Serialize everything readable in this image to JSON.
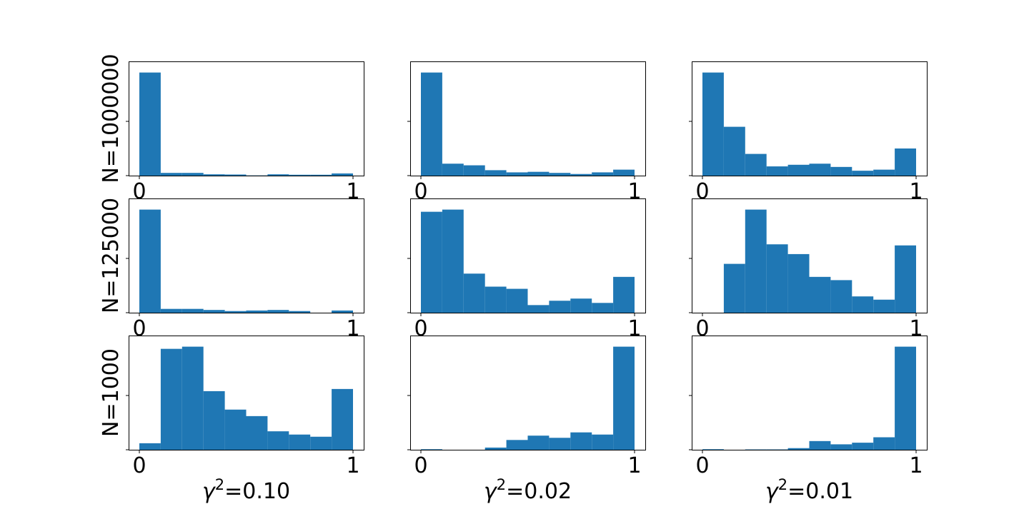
{
  "chart_data": {
    "type": "bar",
    "layout": "3x3 grid of histograms",
    "x_ticks": [
      "0",
      "1"
    ],
    "xlim": [
      0,
      1
    ],
    "column_labels": [
      "γ²=0.10",
      "γ²=0.02",
      "γ²=0.01"
    ],
    "row_labels": [
      "N=1000000",
      "N=125000",
      "N=1000"
    ],
    "bins": [
      0.0,
      0.1,
      0.2,
      0.3,
      0.4,
      0.5,
      0.6,
      0.7,
      0.8,
      0.9,
      1.0
    ],
    "bar_color": "#1f77b4",
    "panels": [
      {
        "row": 0,
        "col": 0,
        "ylim": [
          0,
          1.0
        ],
        "values": [
          0.95,
          0.025,
          0.025,
          0.012,
          0.01,
          0.002,
          0.012,
          0.008,
          0.008,
          0.02
        ]
      },
      {
        "row": 0,
        "col": 1,
        "ylim": [
          0,
          1.0
        ],
        "values": [
          0.95,
          0.11,
          0.095,
          0.05,
          0.03,
          0.035,
          0.025,
          0.015,
          0.03,
          0.055
        ]
      },
      {
        "row": 0,
        "col": 2,
        "ylim": [
          0,
          1.0
        ],
        "values": [
          0.95,
          0.45,
          0.2,
          0.085,
          0.1,
          0.11,
          0.08,
          0.045,
          0.055,
          0.25
        ]
      },
      {
        "row": 1,
        "col": 0,
        "ylim": [
          0,
          1.0
        ],
        "values": [
          0.95,
          0.035,
          0.035,
          0.025,
          0.015,
          0.02,
          0.025,
          0.015,
          0.0,
          0.02
        ]
      },
      {
        "row": 1,
        "col": 1,
        "ylim": [
          0,
          1.0
        ],
        "values": [
          0.93,
          0.95,
          0.36,
          0.24,
          0.22,
          0.07,
          0.11,
          0.13,
          0.09,
          0.33
        ]
      },
      {
        "row": 1,
        "col": 2,
        "ylim": [
          0,
          1.0
        ],
        "values": [
          0.0,
          0.45,
          0.95,
          0.63,
          0.54,
          0.33,
          0.3,
          0.15,
          0.12,
          0.62
        ]
      },
      {
        "row": 2,
        "col": 0,
        "ylim": [
          0,
          1.0
        ],
        "values": [
          0.06,
          0.93,
          0.95,
          0.54,
          0.37,
          0.31,
          0.17,
          0.14,
          0.12,
          0.56
        ]
      },
      {
        "row": 2,
        "col": 1,
        "ylim": [
          0,
          1.0
        ],
        "values": [
          0.005,
          0.0,
          0.0,
          0.02,
          0.09,
          0.13,
          0.11,
          0.16,
          0.14,
          0.95
        ]
      },
      {
        "row": 2,
        "col": 2,
        "ylim": [
          0,
          1.0
        ],
        "values": [
          0.005,
          0.0,
          0.003,
          0.003,
          0.015,
          0.08,
          0.05,
          0.065,
          0.115,
          0.95
        ]
      }
    ]
  }
}
